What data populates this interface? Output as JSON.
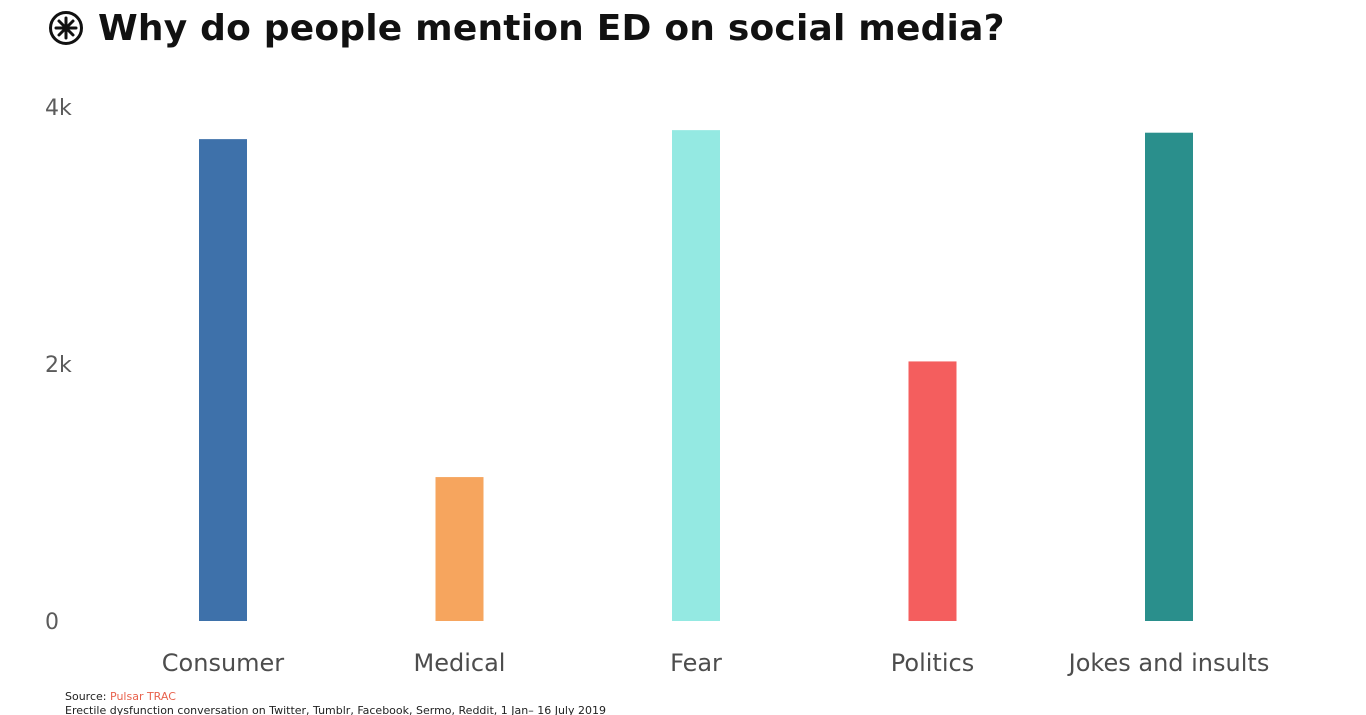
{
  "title": "Why do people mention ED on social media?",
  "logo": {
    "icon": "pulsar-logo-icon"
  },
  "colors": {
    "bars": [
      "#3e71aa",
      "#f6a55e",
      "#94e9e2",
      "#f45e5e",
      "#2a8f8c"
    ],
    "tick_label": "#5b5b5b",
    "category_label": "#4d4d4d",
    "source_accent": "#e8624d"
  },
  "chart_data": {
    "type": "bar",
    "title": "Why do people mention ED on social media?",
    "categories": [
      "Consumer",
      "Medical",
      "Fear",
      "Politics",
      "Jokes and insults"
    ],
    "values": [
      3750,
      1120,
      3820,
      2020,
      3800
    ],
    "ylim": [
      0,
      4000
    ],
    "yticks": [
      0,
      2000,
      4000
    ],
    "ytick_labels": [
      "0",
      "2k",
      "4k"
    ],
    "xlabel": "",
    "ylabel": "",
    "grid": false,
    "legend": "none"
  },
  "footer": {
    "source_label": "Source:",
    "source_name": "Pulsar TRAC",
    "note": "Erectile dysfunction conversation on Twitter, Tumblr, Facebook, Sermo, Reddit, 1 Jan– 16 July 2019"
  }
}
